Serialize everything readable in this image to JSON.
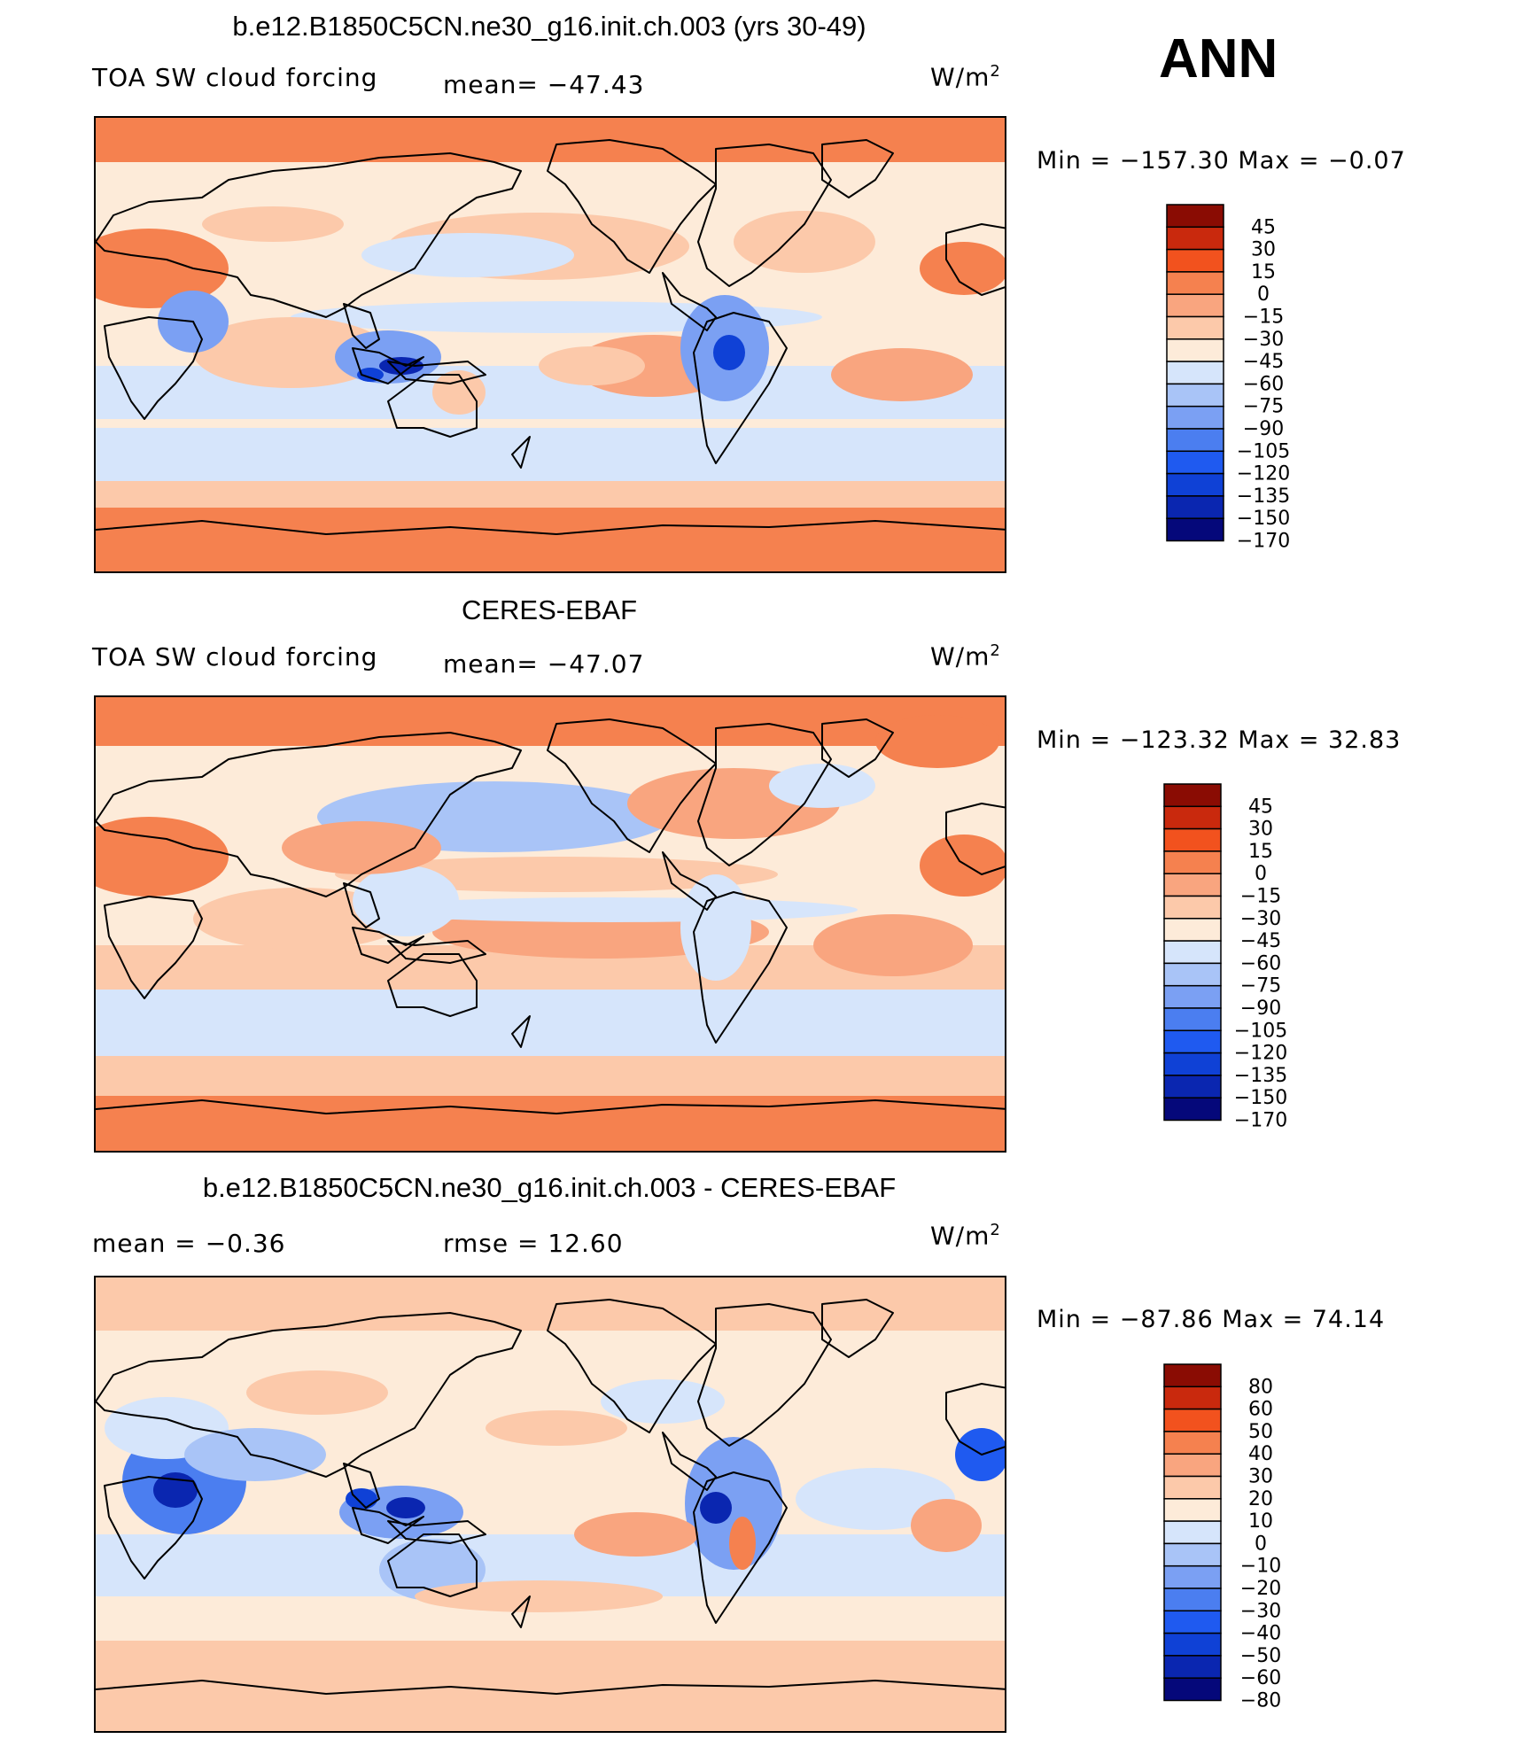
{
  "season": "ANN",
  "colors": {
    "scale": [
      "#05087a",
      "#0a26b0",
      "#0f41d6",
      "#1f5af0",
      "#4b7ef0",
      "#7ba0f3",
      "#a9c4f7",
      "#d6e5fb",
      "#fdebd9",
      "#fcc9aa",
      "#f9a57f",
      "#f5814f",
      "#f2521e",
      "#c9290d",
      "#8a0c03"
    ],
    "ocean_mid": "#d6e5fb",
    "border": "#000000"
  },
  "panels": [
    {
      "id": "model",
      "title": "b.e12.B1850C5CN.ne30_g16.init.ch.003 (yrs 30-49)",
      "left_label": "TOA SW cloud forcing",
      "stat_label": "mean=",
      "stat_value": "−47.43",
      "units": "W/m",
      "units_sup": "2",
      "min_label": "Min",
      "min_value": "−157.30",
      "max_label": "Max",
      "max_value": "−0.07"
    },
    {
      "id": "obs",
      "title": "CERES-EBAF",
      "left_label": "TOA SW cloud forcing",
      "stat_label": "mean=",
      "stat_value": "−47.07",
      "units": "W/m",
      "units_sup": "2",
      "min_label": "Min",
      "min_value": "−123.32",
      "max_label": "Max",
      "max_value": "32.83"
    },
    {
      "id": "diff",
      "title": "b.e12.B1850C5CN.ne30_g16.init.ch.003 - CERES-EBAF",
      "left_label": "mean =",
      "left_value": "−0.36",
      "stat_label": "rmse =",
      "stat_value": "12.60",
      "units": "W/m",
      "units_sup": "2",
      "min_label": "Min",
      "min_value": "−87.86",
      "max_label": "Max",
      "max_value": "74.14"
    }
  ],
  "chart_data": [
    {
      "type": "heatmap",
      "title": "b.e12.B1850C5CN.ne30_g16.init.ch.003 (yrs 30-49)",
      "variable": "TOA SW cloud forcing",
      "units": "W/m2",
      "mean": -47.43,
      "min": -157.3,
      "max": -0.07,
      "colorbar_levels": [
        45,
        30,
        15,
        0,
        -15,
        -30,
        -45,
        -60,
        -75,
        -90,
        -105,
        -120,
        -135,
        -150,
        -170
      ],
      "colorbar_labels": [
        "45",
        "30",
        "15",
        "0",
        "−15",
        "−30",
        "−45",
        "−60",
        "−75",
        "−90",
        "−105",
        "−120",
        "−135",
        "−150",
        "−170"
      ]
    },
    {
      "type": "heatmap",
      "title": "CERES-EBAF",
      "variable": "TOA SW cloud forcing",
      "units": "W/m2",
      "mean": -47.07,
      "min": -123.32,
      "max": 32.83,
      "colorbar_levels": [
        45,
        30,
        15,
        0,
        -15,
        -30,
        -45,
        -60,
        -75,
        -90,
        -105,
        -120,
        -135,
        -150,
        -170
      ],
      "colorbar_labels": [
        "45",
        "30",
        "15",
        "0",
        "−15",
        "−30",
        "−45",
        "−60",
        "−75",
        "−90",
        "−105",
        "−120",
        "−135",
        "−150",
        "−170"
      ]
    },
    {
      "type": "heatmap",
      "title": "b.e12.B1850C5CN.ne30_g16.init.ch.003 - CERES-EBAF",
      "units": "W/m2",
      "mean": -0.36,
      "rmse": 12.6,
      "min": -87.86,
      "max": 74.14,
      "colorbar_levels": [
        80,
        60,
        50,
        40,
        30,
        20,
        10,
        0,
        -10,
        -20,
        -30,
        -40,
        -50,
        -60,
        -80
      ],
      "colorbar_labels": [
        "80",
        "60",
        "50",
        "40",
        "30",
        "20",
        "10",
        "0",
        "−10",
        "−20",
        "−30",
        "−40",
        "−50",
        "−60",
        "−80"
      ]
    }
  ]
}
